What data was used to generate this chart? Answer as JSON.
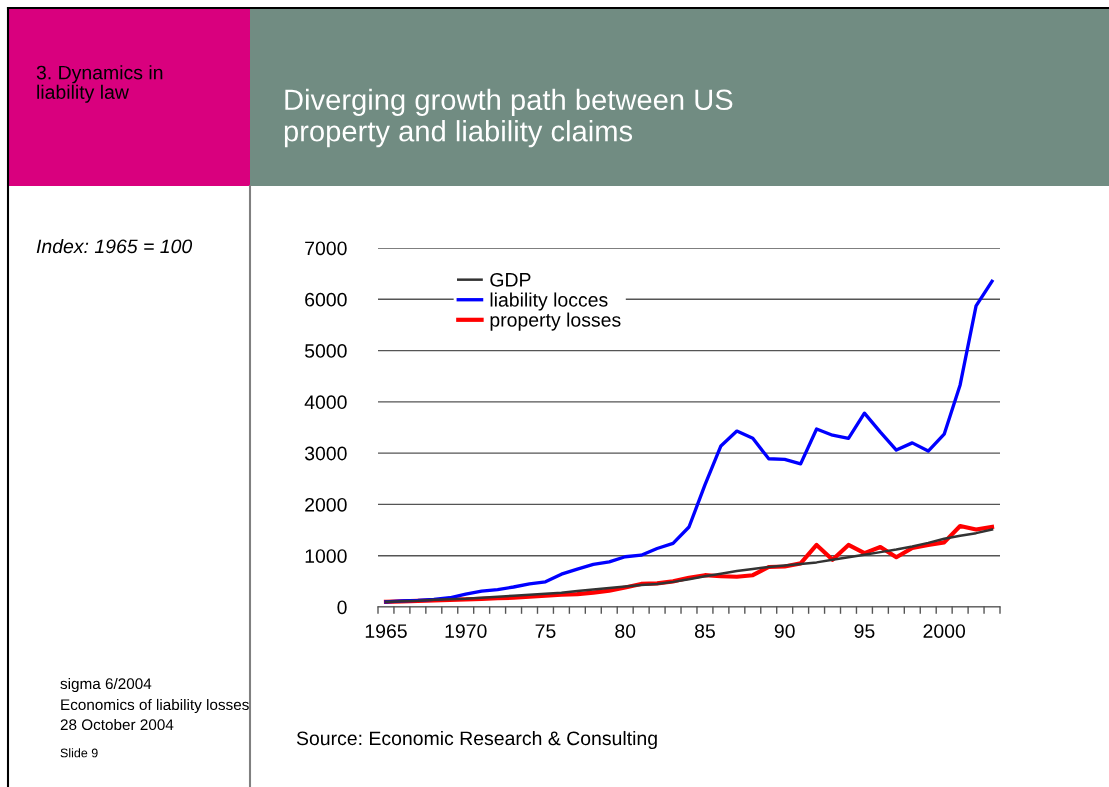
{
  "chart_data": {
    "type": "line",
    "title": "Diverging growth path between US\nproperty and liability claims",
    "annotations": [
      "3. Dynamics in\nliability law",
      "Index: 1965 = 100",
      "sigma 6/2004",
      "Economics of liability losses",
      "28 October 2004",
      "Slide 9",
      "Source: Economic Research & Consulting"
    ],
    "categories": [
      "1965",
      null,
      null,
      null,
      null,
      "1970",
      null,
      null,
      null,
      null,
      "75",
      null,
      null,
      null,
      null,
      "80",
      null,
      null,
      null,
      null,
      "85",
      null,
      null,
      null,
      null,
      "90",
      null,
      null,
      null,
      null,
      "95",
      null,
      null,
      null,
      null,
      "2000",
      null,
      null,
      null
    ],
    "series": [
      {
        "name": "GDP",
        "color": "#333333",
        "values": [
          100,
          110,
          120,
          140,
          150,
          160,
          180,
          200,
          220,
          240,
          260,
          280,
          310,
          340,
          370,
          400,
          430,
          450,
          490,
          540,
          600,
          650,
          700,
          740,
          780,
          810,
          840,
          870,
          920,
          970,
          1020,
          1070,
          1120,
          1180,
          1250,
          1330,
          1390,
          1440,
          1510
        ]
      },
      {
        "name": "liability locces",
        "color": "#0000ff",
        "values": [
          100,
          120,
          130,
          150,
          180,
          250,
          310,
          340,
          390,
          450,
          490,
          640,
          740,
          830,
          880,
          980,
          1010,
          1140,
          1240,
          1560,
          2380,
          3140,
          3430,
          3290,
          2890,
          2880,
          2790,
          3470,
          3350,
          3290,
          3780,
          3410,
          3060,
          3200,
          3040,
          3370,
          4330,
          5870,
          6350
        ]
      },
      {
        "name": "property losses",
        "color": "#ff0000",
        "values": [
          100,
          110,
          120,
          130,
          140,
          150,
          160,
          170,
          180,
          200,
          220,
          240,
          250,
          280,
          320,
          380,
          450,
          460,
          500,
          570,
          620,
          600,
          590,
          620,
          780,
          790,
          850,
          1210,
          920,
          1210,
          1050,
          1170,
          970,
          1150,
          1210,
          1260,
          1580,
          1510,
          1560
        ]
      }
    ],
    "ylim": [
      0,
      7000
    ],
    "yticks": [
      0,
      1000,
      2000,
      3000,
      4000,
      5000,
      6000,
      7000
    ],
    "grid": "y",
    "legend": "top",
    "marker": "none",
    "line_style": "solid"
  }
}
